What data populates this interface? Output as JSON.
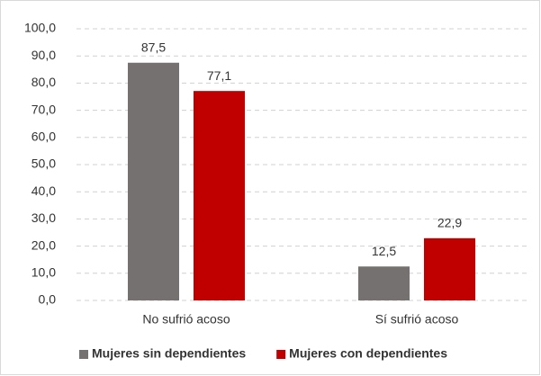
{
  "chart_data": {
    "type": "bar",
    "categories": [
      "No sufrió acoso",
      "Sí sufrió acoso"
    ],
    "series": [
      {
        "name": "Mujeres sin dependientes",
        "color": "#767171",
        "values": [
          87.5,
          12.5
        ],
        "value_labels": [
          "87,5",
          "12,5"
        ]
      },
      {
        "name": "Mujeres con dependientes",
        "color": "#c00000",
        "values": [
          77.1,
          22.9
        ],
        "value_labels": [
          "77,1",
          "22,9"
        ]
      }
    ],
    "ylim": [
      0,
      100
    ],
    "yticks": [
      {
        "value": 0,
        "label": "0,0"
      },
      {
        "value": 10,
        "label": "10,0"
      },
      {
        "value": 20,
        "label": "20,0"
      },
      {
        "value": 30,
        "label": "30,0"
      },
      {
        "value": 40,
        "label": "40,0"
      },
      {
        "value": 50,
        "label": "50,0"
      },
      {
        "value": 60,
        "label": "60,0"
      },
      {
        "value": 70,
        "label": "70,0"
      },
      {
        "value": 80,
        "label": "80,0"
      },
      {
        "value": 90,
        "label": "90,0"
      },
      {
        "value": 100,
        "label": "100,0"
      }
    ],
    "grid": true,
    "legend": "bottom"
  }
}
